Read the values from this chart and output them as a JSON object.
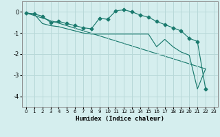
{
  "bg_color": "#d5eeee",
  "grid_color": "#b8d8d8",
  "line_color": "#1a7a6e",
  "xlabel": "Humidex (Indice chaleur)",
  "xlim": [
    -0.5,
    23.5
  ],
  "ylim": [
    -4.5,
    0.5
  ],
  "yticks": [
    0,
    -1,
    -2,
    -3,
    -4
  ],
  "xticks": [
    0,
    1,
    2,
    3,
    4,
    5,
    6,
    7,
    8,
    9,
    10,
    11,
    12,
    13,
    14,
    15,
    16,
    17,
    18,
    19,
    20,
    21,
    22,
    23
  ],
  "series": [
    {
      "x": [
        0,
        1,
        2,
        3,
        4,
        5,
        6,
        7,
        8,
        9,
        10,
        11,
        12,
        13,
        14,
        15,
        16,
        17,
        18,
        19,
        20,
        21,
        22
      ],
      "y": [
        -0.05,
        -0.1,
        -0.2,
        -0.5,
        -0.45,
        -0.55,
        -0.65,
        -0.75,
        -0.8,
        -0.3,
        -0.35,
        0.05,
        0.1,
        -0.0,
        -0.15,
        -0.25,
        -0.45,
        -0.6,
        -0.75,
        -0.9,
        -1.25,
        -1.4,
        -3.65
      ],
      "marker": "D",
      "markersize": 2.5
    },
    {
      "x": [
        0,
        1,
        2,
        3,
        4,
        5,
        6,
        7,
        8,
        15,
        16,
        17,
        18,
        19,
        20,
        21,
        22
      ],
      "y": [
        -0.05,
        -0.1,
        -0.55,
        -0.65,
        -0.7,
        -0.8,
        -0.9,
        -1.0,
        -1.05,
        -1.05,
        -1.65,
        -1.3,
        -1.65,
        -1.9,
        -2.05,
        -3.65,
        -2.7
      ],
      "marker": null,
      "markersize": 0
    },
    {
      "x": [
        0,
        22
      ],
      "y": [
        -0.05,
        -2.7
      ],
      "marker": null,
      "markersize": 0
    }
  ]
}
